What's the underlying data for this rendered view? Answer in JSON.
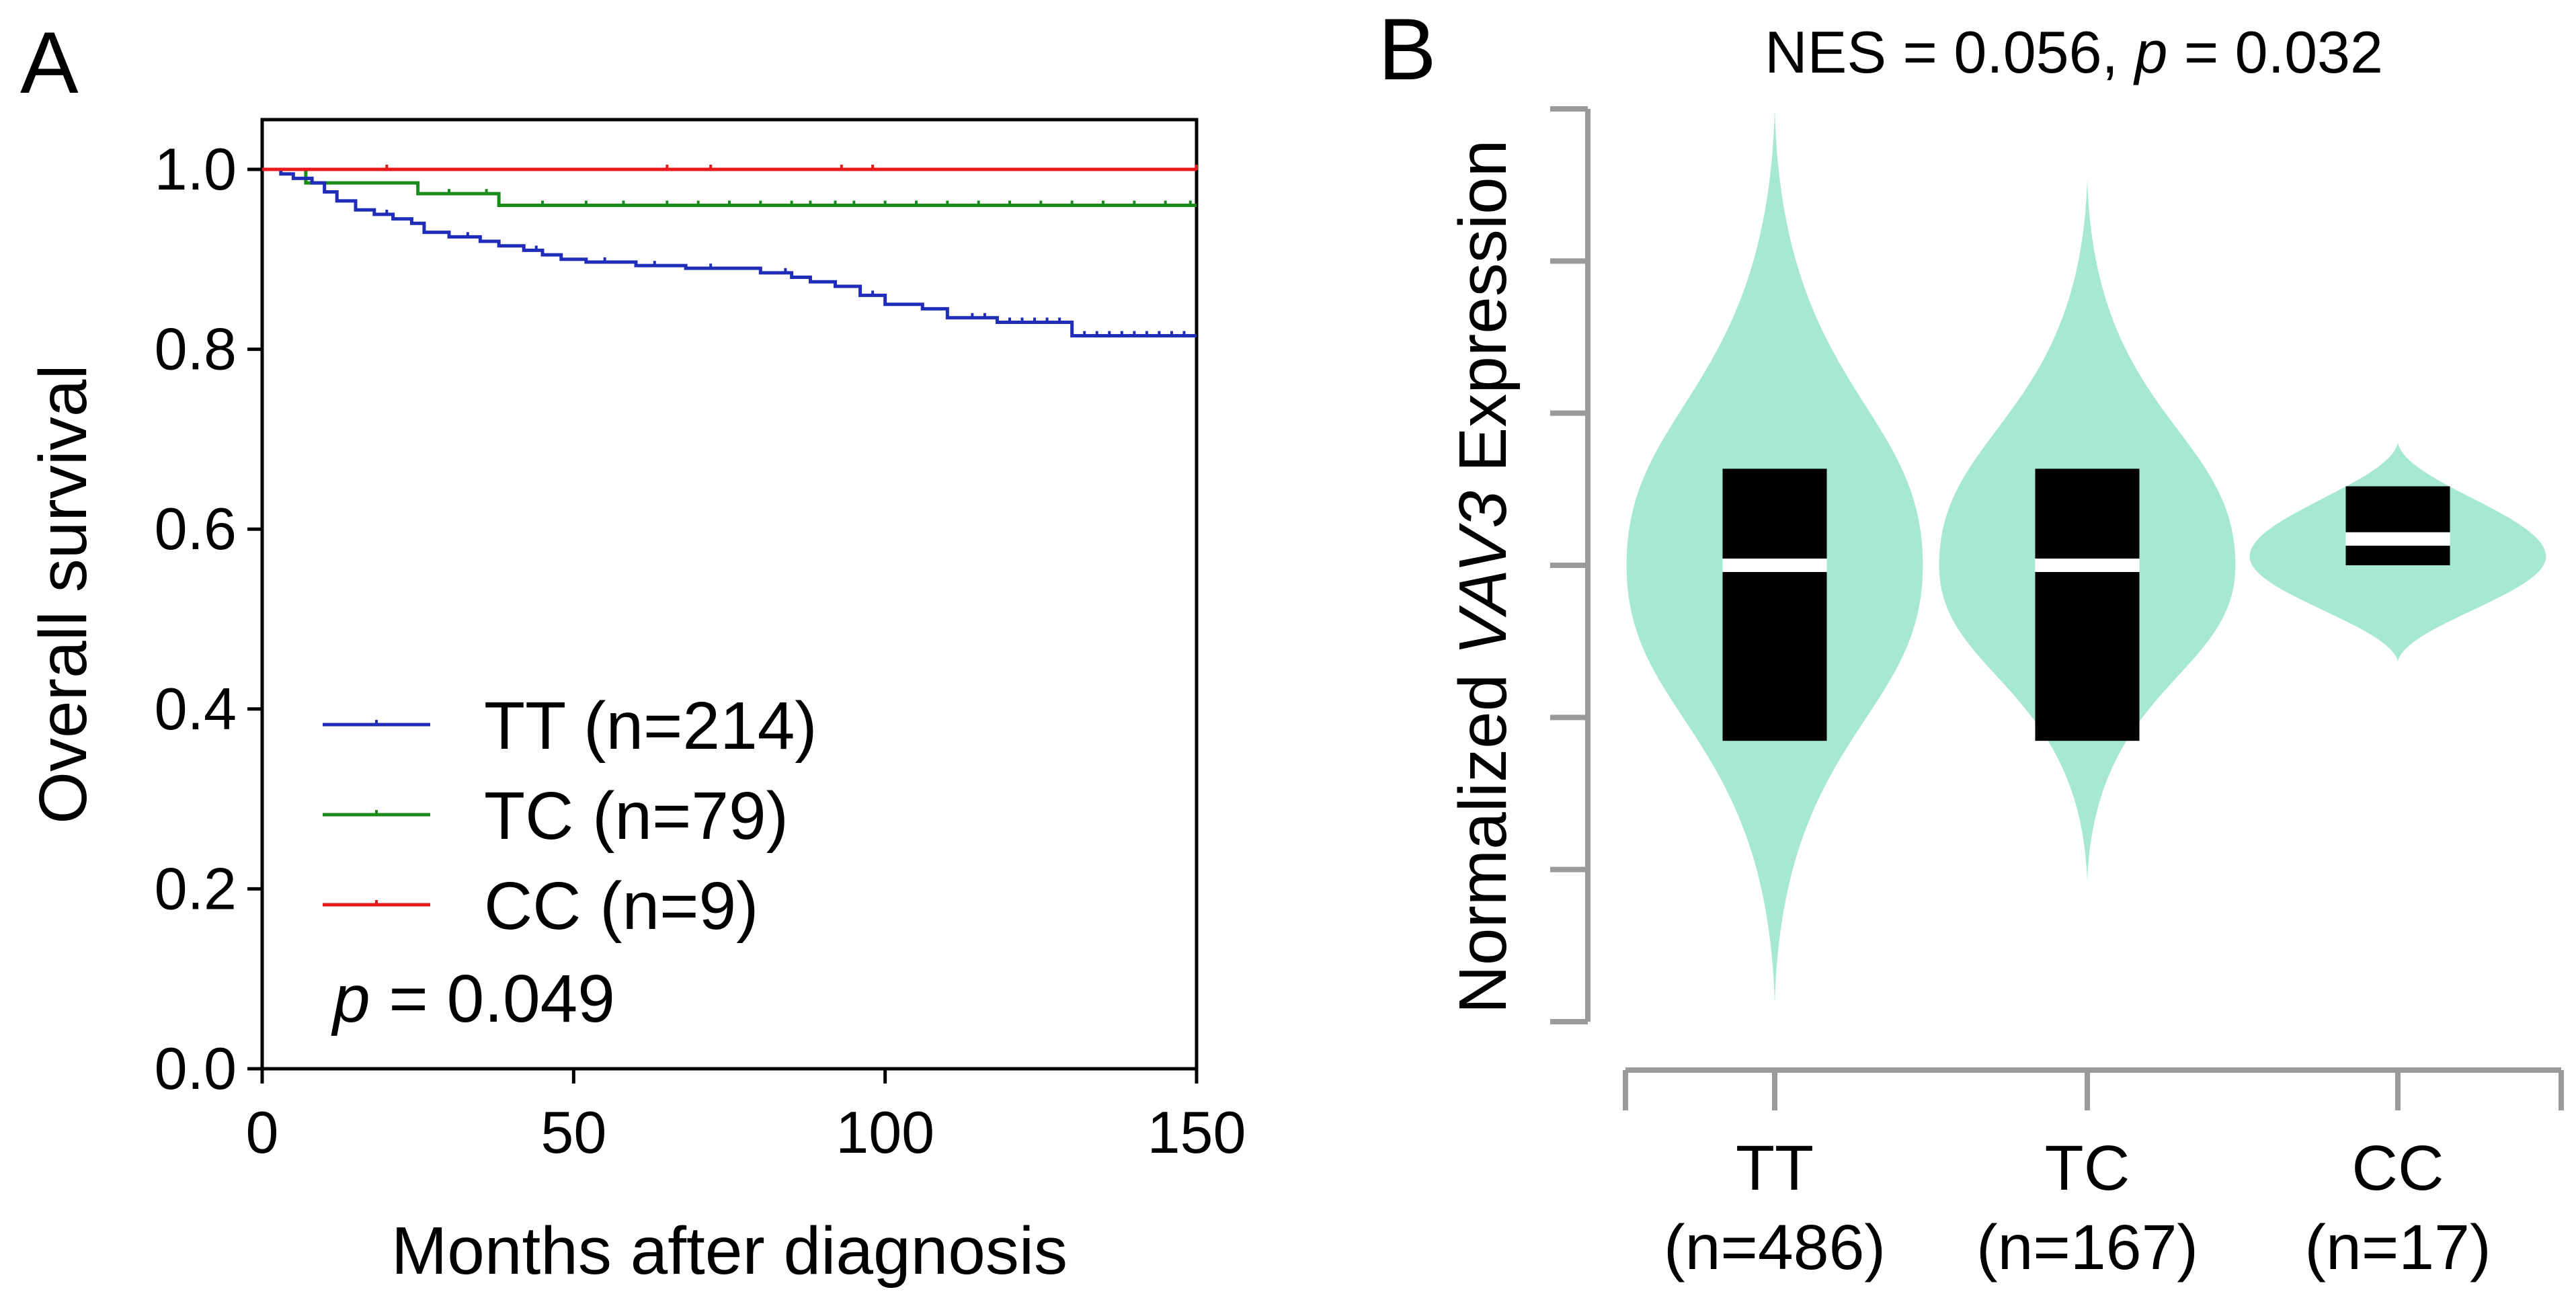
{
  "panels": {
    "a": {
      "letter": "A"
    },
    "b": {
      "letter": "B"
    }
  },
  "chart_data": [
    {
      "panel": "A",
      "type": "line",
      "subtype": "kaplan-meier",
      "xlabel": "Months after diagnosis",
      "ylabel": "Overall survival",
      "xlim": [
        0,
        150
      ],
      "ylim": [
        0,
        1.05
      ],
      "xticks": [
        {
          "v": 0,
          "label": "0"
        },
        {
          "v": 50,
          "label": "50"
        },
        {
          "v": 100,
          "label": "100"
        },
        {
          "v": 150,
          "label": "150"
        }
      ],
      "yticks": [
        {
          "v": 0.0,
          "label": "0.0"
        },
        {
          "v": 0.2,
          "label": "0.2"
        },
        {
          "v": 0.4,
          "label": "0.4"
        },
        {
          "v": 0.6,
          "label": "0.6"
        },
        {
          "v": 0.8,
          "label": "0.8"
        },
        {
          "v": 1.0,
          "label": "1.0"
        }
      ],
      "pvalue": {
        "prefix": "p",
        "text": " = 0.049"
      },
      "legend_position": "bottom-left",
      "series": [
        {
          "name": "TT (n=214)",
          "color": "#1f2db8",
          "steps": [
            [
              0,
              1.0
            ],
            [
              3,
              0.995
            ],
            [
              5,
              0.99
            ],
            [
              8,
              0.985
            ],
            [
              10,
              0.975
            ],
            [
              12,
              0.965
            ],
            [
              15,
              0.955
            ],
            [
              18,
              0.95
            ],
            [
              21,
              0.945
            ],
            [
              24,
              0.94
            ],
            [
              26,
              0.93
            ],
            [
              30,
              0.925
            ],
            [
              35,
              0.92
            ],
            [
              38,
              0.915
            ],
            [
              42,
              0.91
            ],
            [
              45,
              0.905
            ],
            [
              48,
              0.9
            ],
            [
              52,
              0.897
            ],
            [
              60,
              0.893
            ],
            [
              68,
              0.89
            ],
            [
              80,
              0.885
            ],
            [
              85,
              0.88
            ],
            [
              88,
              0.875
            ],
            [
              92,
              0.87
            ],
            [
              96,
              0.86
            ],
            [
              100,
              0.85
            ],
            [
              106,
              0.845
            ],
            [
              110,
              0.835
            ],
            [
              118,
              0.83
            ],
            [
              123,
              0.83
            ],
            [
              130,
              0.815
            ],
            [
              150,
              0.815
            ]
          ],
          "censors": [
            20,
            33,
            44,
            55,
            63,
            72,
            84,
            98,
            114,
            116,
            118,
            120,
            122,
            124,
            126,
            128,
            132,
            134,
            136,
            138,
            140,
            142,
            144,
            146,
            148
          ]
        },
        {
          "name": "TC (n=79)",
          "color": "#1a8a1a",
          "steps": [
            [
              0,
              1.0
            ],
            [
              7,
              0.985
            ],
            [
              25,
              0.973
            ],
            [
              38,
              0.96
            ],
            [
              150,
              0.96
            ]
          ],
          "censors": [
            30,
            36,
            45,
            52,
            58,
            65,
            70,
            75,
            80,
            85,
            88,
            92,
            95,
            100,
            105,
            110,
            115,
            120,
            125,
            130,
            135,
            140,
            145,
            149
          ]
        },
        {
          "name": "CC (n=9)",
          "color": "#e8191c",
          "steps": [
            [
              0,
              1.0
            ],
            [
              150,
              1.0
            ]
          ],
          "censors": [
            20,
            65,
            72,
            93,
            98,
            150
          ]
        }
      ]
    },
    {
      "panel": "B",
      "type": "violin",
      "title": {
        "prefix": "NES = 0.056,  ",
        "p": "p",
        "suffix": " = 0.032"
      },
      "ylabel": {
        "prefix": "Normalized ",
        "gene": "VAV3",
        "suffix": " Expression"
      },
      "fill_color": "#a6e8d4",
      "box_color": "#000000",
      "median_color": "#ffffff",
      "ytick_count": 7,
      "categories": [
        {
          "name": "TT",
          "n": "(n=486)",
          "min": 0.02,
          "max": 1.04,
          "q1": 0.32,
          "median": 0.52,
          "q3": 0.63,
          "peak": 0.52,
          "halfwidth": 0.95
        },
        {
          "name": "TC",
          "n": "(n=167)",
          "min": 0.16,
          "max": 0.96,
          "q1": 0.32,
          "median": 0.52,
          "q3": 0.63,
          "peak": 0.52,
          "halfwidth": 0.95
        },
        {
          "name": "CC",
          "n": "(n=17)",
          "min": 0.41,
          "max": 0.66,
          "q1": 0.52,
          "median": 0.55,
          "q3": 0.61,
          "peak": 0.53,
          "halfwidth": 0.95
        }
      ],
      "ylim": [
        0,
        1.04
      ]
    }
  ]
}
